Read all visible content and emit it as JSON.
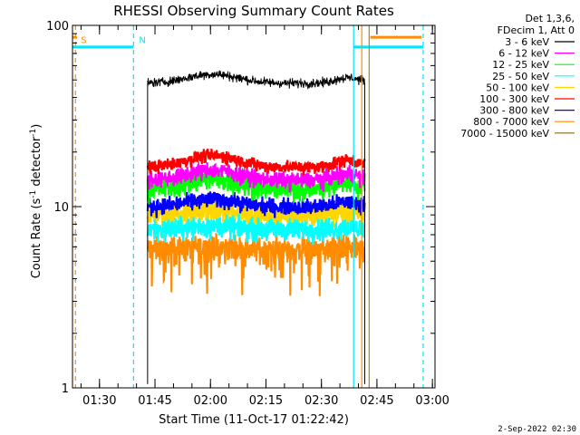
{
  "chart_data": {
    "type": "line",
    "title": "RHESSI Observing Summary Count Rates",
    "xlabel": "Start Time (11-Oct-17 01:22:42)",
    "ylabel_main": "Count Rate (s",
    "ylabel_sup1": "-1",
    "ylabel_mid": " detector",
    "ylabel_sup2": "-1",
    "ylabel_end": ")",
    "y_scale": "log",
    "ylim": [
      1,
      100
    ],
    "x_unit": "minutes from 01:22:42",
    "xlim": [
      0,
      98
    ],
    "x_ticks": [
      {
        "label": "01:30",
        "minute": 7.3
      },
      {
        "label": "01:45",
        "minute": 22.3
      },
      {
        "label": "02:00",
        "minute": 37.3
      },
      {
        "label": "02:15",
        "minute": 52.3
      },
      {
        "label": "02:30",
        "minute": 67.3
      },
      {
        "label": "02:45",
        "minute": 82.3
      },
      {
        "label": "03:00",
        "minute": 97.3
      }
    ],
    "y_ticks": [
      {
        "label": "1",
        "value": 1
      },
      {
        "label": "10",
        "value": 10
      },
      {
        "label": "100",
        "value": 100
      }
    ],
    "legend_header": [
      "Det 1,3,6,",
      "FDecim 1, Att 0"
    ],
    "series": [
      {
        "name": "3 - 6 keV",
        "color": "#000000",
        "level": 48,
        "noise": 0.05,
        "hump": 0.12
      },
      {
        "name": "6 - 12 keV",
        "color": "#ff00ff",
        "level": 14,
        "noise": 0.09,
        "hump": 0.14
      },
      {
        "name": "12 - 25 keV",
        "color": "#00ff00",
        "level": 12.5,
        "noise": 0.12,
        "hump": 0.14
      },
      {
        "name": "25 - 50 keV",
        "color": "#00ffff",
        "level": 7.5,
        "noise": 0.12,
        "hump": 0.04
      },
      {
        "name": "50 - 100 keV",
        "color": "#ffd700",
        "level": 9,
        "noise": 0.14,
        "hump": 0.06
      },
      {
        "name": "100 - 300 keV",
        "color": "#ff0000",
        "level": 16.5,
        "noise": 0.07,
        "hump": 0.16
      },
      {
        "name": "300 - 800 keV",
        "color": "#0000ff",
        "level": 10,
        "noise": 0.09,
        "hump": 0.1
      },
      {
        "name": "800 - 7000 keV",
        "color": "#ff8c00",
        "level": 5.8,
        "noise": 0.14,
        "hump": 0.03
      },
      {
        "name": "7000 - 15000 keV",
        "color": "#8b6914",
        "level": 0,
        "noise": 0,
        "hump": 0
      }
    ],
    "data_interval": {
      "start_minute": 20.3,
      "end_minute": 79.0
    },
    "annotations": [
      {
        "text": "S",
        "color": "#ff8c00",
        "minute": 0.8
      },
      {
        "text": "N",
        "color": "#00e5ff",
        "minute": 16.5
      }
    ],
    "vertical_lines": [
      {
        "minute": 0.8,
        "color": "#ff8c00",
        "style": "dashed"
      },
      {
        "minute": 16.5,
        "color": "#00e5ff",
        "style": "dashed"
      },
      {
        "minute": 76.0,
        "color": "#00e5ff",
        "style": "solid"
      },
      {
        "minute": 78.2,
        "color": "#ff8c00",
        "style": "solid"
      },
      {
        "minute": 80.2,
        "color": "#b8860b",
        "style": "solid"
      },
      {
        "minute": 94.8,
        "color": "#00e5ff",
        "style": "dashed"
      }
    ],
    "bars": [
      {
        "from": 0,
        "to": 16.5,
        "value": 76,
        "color": "#00e5ff"
      },
      {
        "from": 0,
        "to": 1.2,
        "value": 86,
        "color": "#ff8c00"
      },
      {
        "from": 76.0,
        "to": 94.8,
        "value": 76,
        "color": "#00e5ff"
      },
      {
        "from": 80.5,
        "to": 94.4,
        "value": 86,
        "color": "#ff8c00"
      }
    ],
    "grid": false
  },
  "footer": {
    "timestamp": "2-Sep-2022 02:30"
  }
}
